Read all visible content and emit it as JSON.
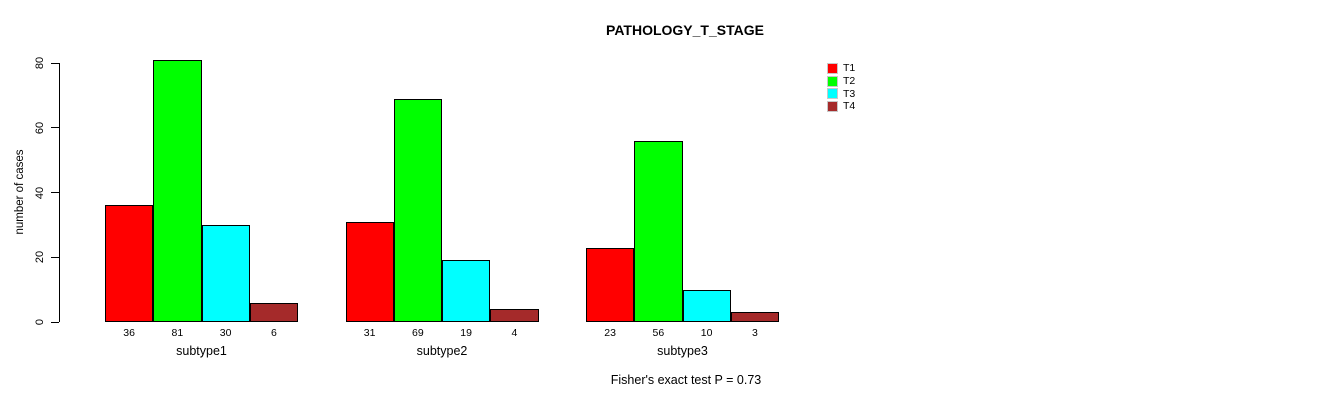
{
  "chart_data": {
    "type": "bar",
    "title": "PATHOLOGY_T_STAGE",
    "ylabel": "number of cases",
    "xlabel": "",
    "ylim": [
      0,
      80
    ],
    "yticks": [
      0,
      20,
      40,
      60,
      80
    ],
    "categories": [
      "subtype1",
      "subtype2",
      "subtype3"
    ],
    "series": [
      {
        "name": "T1",
        "color": "#ff0000",
        "values": [
          36,
          31,
          23
        ]
      },
      {
        "name": "T2",
        "color": "#00ff00",
        "values": [
          81,
          69,
          56
        ]
      },
      {
        "name": "T3",
        "color": "#00ffff",
        "values": [
          30,
          19,
          10
        ]
      },
      {
        "name": "T4",
        "color": "#a52a2a",
        "values": [
          6,
          4,
          3
        ]
      }
    ],
    "legend": {
      "position": "top-right",
      "entries": [
        "T1",
        "T2",
        "T3",
        "T4"
      ]
    },
    "bar_value_labels_shown": true,
    "grid": false,
    "annotation": "Fisher's exact test P = 0.73",
    "bar_border_color": "#000000",
    "background_color": "#ffffff"
  }
}
